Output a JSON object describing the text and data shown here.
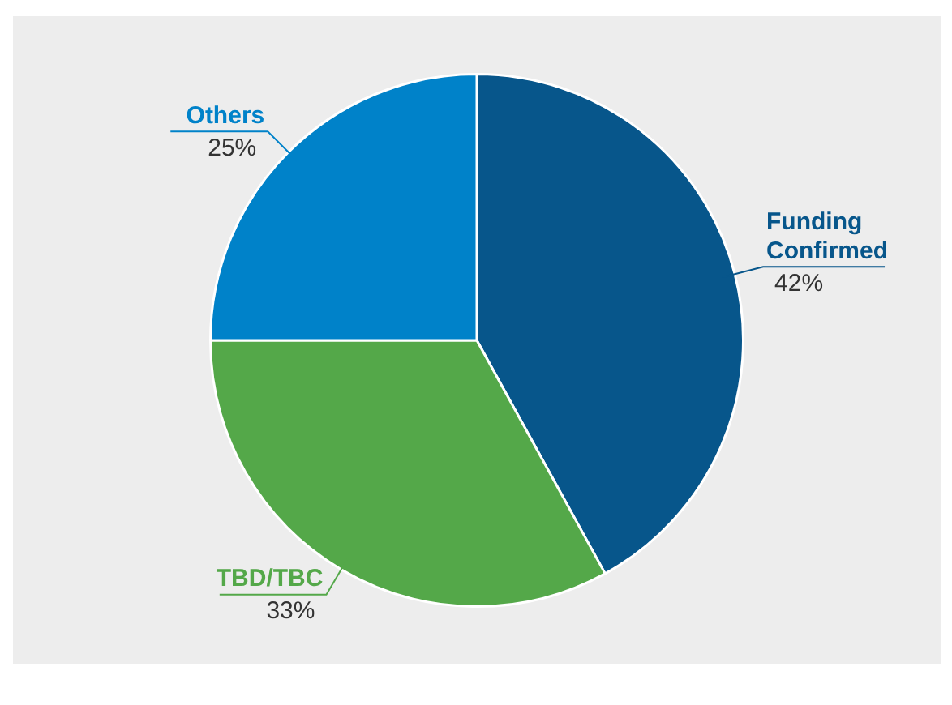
{
  "chart_data": {
    "type": "pie",
    "categories": [
      "Funding Confirmed",
      "TBD/TBC",
      "Others"
    ],
    "values": [
      42,
      33,
      25
    ],
    "colors": [
      "#07568b",
      "#54a849",
      "#0082c9"
    ],
    "value_labels": [
      "42%",
      "33%",
      "25%"
    ],
    "legend": false
  }
}
